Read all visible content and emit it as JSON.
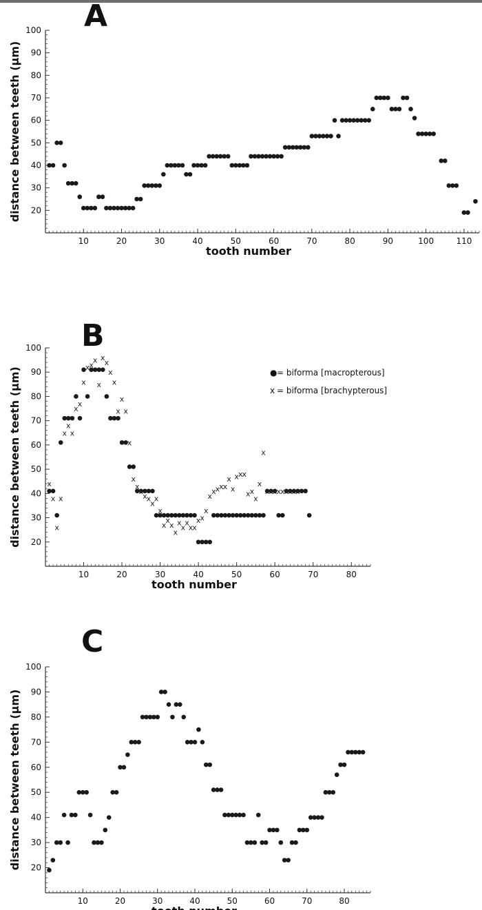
{
  "chart_data": [
    {
      "type": "scatter",
      "panel_label": "A",
      "xlabel": "tooth number",
      "ylabel": "distance between teeth (μm)",
      "xlim": [
        0,
        114
      ],
      "ylim": [
        10,
        100
      ],
      "x_ticks": [
        10,
        20,
        30,
        40,
        50,
        60,
        70,
        80,
        90,
        100,
        110
      ],
      "y_ticks": [
        20,
        30,
        40,
        50,
        60,
        70,
        80,
        90,
        100
      ],
      "legend": [],
      "series": [
        {
          "marker": "dot",
          "x": [
            1,
            2,
            3,
            4,
            5,
            6,
            7,
            8,
            9,
            10,
            11,
            12,
            13,
            14,
            15,
            16,
            17,
            18,
            19,
            20,
            21,
            22,
            23,
            24,
            25,
            26,
            27,
            28,
            29,
            30,
            31,
            32,
            33,
            34,
            35,
            36,
            37,
            38,
            39,
            40,
            41,
            42,
            43,
            44,
            45,
            46,
            47,
            48,
            49,
            50,
            51,
            52,
            53,
            54,
            55,
            56,
            57,
            58,
            59,
            60,
            61,
            62,
            63,
            64,
            65,
            66,
            67,
            68,
            69,
            70,
            71,
            72,
            73,
            74,
            75,
            76,
            77,
            78,
            79,
            80,
            81,
            82,
            83,
            84,
            85,
            86,
            87,
            88,
            89,
            90,
            91,
            92,
            93,
            94,
            95,
            96,
            97,
            98,
            99,
            100,
            101,
            102,
            104,
            105,
            106,
            107,
            108,
            110,
            111,
            113
          ],
          "y": [
            40,
            40,
            50,
            50,
            40,
            32,
            32,
            32,
            26,
            21,
            21,
            21,
            21,
            26,
            26,
            21,
            21,
            21,
            21,
            21,
            21,
            21,
            21,
            25,
            25,
            31,
            31,
            31,
            31,
            31,
            36,
            40,
            40,
            40,
            40,
            40,
            36,
            36,
            40,
            40,
            40,
            40,
            44,
            44,
            44,
            44,
            44,
            44,
            40,
            40,
            40,
            40,
            40,
            44,
            44,
            44,
            44,
            44,
            44,
            44,
            44,
            44,
            48,
            48,
            48,
            48,
            48,
            48,
            48,
            53,
            53,
            53,
            53,
            53,
            53,
            60,
            53,
            60,
            60,
            60,
            60,
            60,
            60,
            60,
            60,
            65,
            70,
            70,
            70,
            70,
            65,
            65,
            65,
            70,
            70,
            65,
            61,
            54,
            54,
            54,
            54,
            54,
            42,
            42,
            31,
            31,
            31,
            19,
            19,
            24
          ]
        }
      ]
    },
    {
      "type": "scatter",
      "panel_label": "B",
      "xlabel": "tooth number",
      "ylabel": "distance between teeth (μm)",
      "xlim": [
        0,
        85
      ],
      "ylim": [
        10,
        100
      ],
      "x_ticks": [
        10,
        20,
        30,
        40,
        50,
        60,
        70,
        80
      ],
      "y_ticks": [
        20,
        30,
        40,
        50,
        60,
        70,
        80,
        90,
        100
      ],
      "legend": [
        {
          "marker": "●",
          "label": "= biforma [macropterous]"
        },
        {
          "marker": "x",
          "label": "= biforma [brachypterous]"
        }
      ],
      "series": [
        {
          "marker": "dot",
          "x": [
            1,
            2,
            3,
            4,
            5,
            6,
            7,
            8,
            9,
            10,
            11,
            12,
            13,
            14,
            15,
            16,
            17,
            18,
            19,
            20,
            21,
            22,
            23,
            24,
            25,
            26,
            27,
            28,
            29,
            30,
            31,
            32,
            33,
            34,
            35,
            36,
            37,
            38,
            39,
            40,
            41,
            42,
            43,
            44,
            45,
            46,
            47,
            48,
            49,
            50,
            51,
            52,
            53,
            54,
            55,
            56,
            57,
            58,
            59,
            60,
            61,
            62,
            63,
            64,
            65,
            66,
            67,
            68,
            69
          ],
          "y": [
            41,
            41,
            31,
            61,
            71,
            71,
            71,
            80,
            71,
            91,
            80,
            91,
            91,
            91,
            91,
            80,
            71,
            71,
            71,
            61,
            61,
            51,
            51,
            41,
            41,
            41,
            41,
            41,
            31,
            31,
            31,
            31,
            31,
            31,
            31,
            31,
            31,
            31,
            31,
            20,
            20,
            20,
            20,
            31,
            31,
            31,
            31,
            31,
            31,
            31,
            31,
            31,
            31,
            31,
            31,
            31,
            31,
            41,
            41,
            41,
            31,
            31,
            41,
            41,
            41,
            41,
            41,
            41,
            31
          ]
        },
        {
          "marker": "x",
          "x": [
            1,
            2,
            3,
            4,
            5,
            6,
            7,
            8,
            9,
            10,
            11,
            12,
            13,
            14,
            15,
            16,
            17,
            18,
            19,
            20,
            21,
            22,
            23,
            24,
            25,
            26,
            27,
            28,
            29,
            30,
            31,
            32,
            33,
            34,
            35,
            36,
            37,
            38,
            39,
            40,
            41,
            42,
            43,
            44,
            45,
            46,
            47,
            48,
            49,
            50,
            51,
            52,
            53,
            54,
            55,
            56,
            57,
            58,
            59,
            60,
            61,
            62,
            63,
            64,
            65,
            66
          ],
          "y": [
            44,
            38,
            26,
            38,
            65,
            68,
            65,
            75,
            77,
            86,
            92,
            93,
            95,
            85,
            96,
            94,
            90,
            86,
            74,
            79,
            74,
            61,
            46,
            43,
            41,
            39,
            38,
            36,
            38,
            33,
            27,
            29,
            27,
            24,
            28,
            26,
            28,
            26,
            26,
            29,
            30,
            33,
            39,
            41,
            42,
            43,
            43,
            46,
            42,
            47,
            48,
            48,
            40,
            41,
            38,
            44,
            57,
            41,
            41,
            41,
            41,
            41,
            41,
            41,
            41,
            41
          ]
        }
      ]
    },
    {
      "type": "scatter",
      "panel_label": "C",
      "xlabel": "tooth number",
      "ylabel": "distance between teeth (μm)",
      "xlim": [
        0,
        87
      ],
      "ylim": [
        10,
        100
      ],
      "x_ticks": [
        10,
        20,
        30,
        40,
        50,
        60,
        70,
        80
      ],
      "y_ticks": [
        20,
        30,
        40,
        50,
        60,
        70,
        80,
        90,
        100
      ],
      "legend": [],
      "series": [
        {
          "marker": "dot",
          "x": [
            1,
            2,
            3,
            4,
            5,
            6,
            7,
            8,
            9,
            10,
            11,
            12,
            13,
            14,
            15,
            16,
            17,
            18,
            19,
            20,
            21,
            22,
            23,
            24,
            25,
            26,
            27,
            28,
            29,
            30,
            31,
            32,
            33,
            34,
            35,
            36,
            37,
            38,
            39,
            40,
            41,
            42,
            43,
            44,
            45,
            46,
            47,
            48,
            49,
            50,
            51,
            52,
            53,
            54,
            55,
            56,
            57,
            58,
            59,
            60,
            61,
            62,
            63,
            64,
            65,
            66,
            67,
            68,
            69,
            70,
            71,
            72,
            73,
            74,
            75,
            76,
            77,
            78,
            79,
            80,
            81,
            82,
            83,
            84,
            85
          ],
          "y": [
            19,
            23,
            30,
            30,
            41,
            30,
            41,
            41,
            50,
            50,
            50,
            41,
            30,
            30,
            30,
            35,
            40,
            50,
            50,
            60,
            60,
            65,
            70,
            70,
            70,
            80,
            80,
            80,
            80,
            80,
            90,
            90,
            85,
            80,
            85,
            85,
            80,
            70,
            70,
            70,
            75,
            70,
            61,
            61,
            51,
            51,
            51,
            41,
            41,
            41,
            41,
            41,
            41,
            30,
            30,
            30,
            41,
            30,
            30,
            35,
            35,
            35,
            30,
            23,
            23,
            30,
            30,
            35,
            35,
            35,
            40,
            40,
            40,
            40,
            50,
            50,
            50,
            57,
            61,
            61,
            66,
            66,
            66,
            66,
            66
          ]
        }
      ]
    }
  ]
}
